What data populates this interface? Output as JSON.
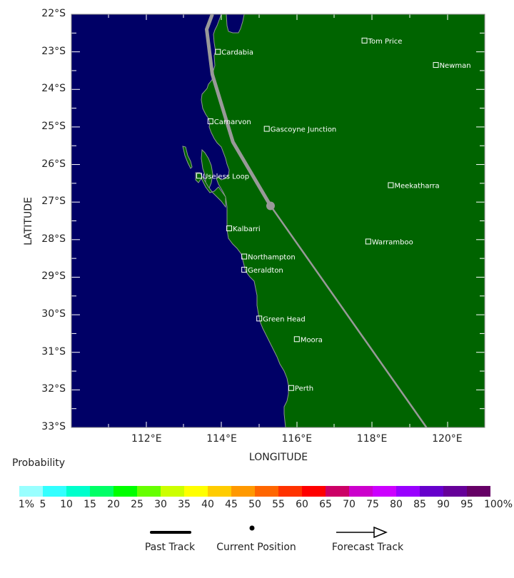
{
  "chart_data": {
    "type": "map",
    "title": "",
    "xlabel": "LONGITUDE",
    "ylabel": "LATITUDE",
    "xlim": [
      110,
      121
    ],
    "ylim": [
      -33,
      -22
    ],
    "x_ticks": [
      "112°E",
      "114°E",
      "116°E",
      "118°E",
      "120°E"
    ],
    "y_ticks": [
      "22°S",
      "23°S",
      "24°S",
      "25°S",
      "26°S",
      "27°S",
      "28°S",
      "29°S",
      "30°S",
      "31°S",
      "32°S",
      "33°S"
    ],
    "colors": {
      "ocean": "#000066",
      "land": "#006400",
      "coastline": "#8c9a8c",
      "track": "#999999"
    },
    "cities": [
      {
        "name": "Tom Price",
        "lon": 117.8,
        "lat": -22.7
      },
      {
        "name": "Cardabia",
        "lon": 113.9,
        "lat": -23.0
      },
      {
        "name": "Newman",
        "lon": 119.7,
        "lat": -23.35
      },
      {
        "name": "Carnarvon",
        "lon": 113.7,
        "lat": -24.85
      },
      {
        "name": "Gascoyne Junction",
        "lon": 115.2,
        "lat": -25.05
      },
      {
        "name": "Useless Loop",
        "lon": 113.4,
        "lat": -26.3
      },
      {
        "name": "Meekatharra",
        "lon": 118.5,
        "lat": -26.55
      },
      {
        "name": "Kalbarri",
        "lon": 114.2,
        "lat": -27.7
      },
      {
        "name": "Warramboo",
        "lon": 117.9,
        "lat": -28.05
      },
      {
        "name": "Northampton",
        "lon": 114.6,
        "lat": -28.45
      },
      {
        "name": "Geraldton",
        "lon": 114.6,
        "lat": -28.8
      },
      {
        "name": "Green Head",
        "lon": 115.0,
        "lat": -30.1
      },
      {
        "name": "Moora",
        "lon": 116.0,
        "lat": -30.65
      },
      {
        "name": "Perth",
        "lon": 115.85,
        "lat": -31.95
      }
    ],
    "past_track": [
      {
        "lon": 113.75,
        "lat": -22.0
      },
      {
        "lon": 113.6,
        "lat": -22.4
      },
      {
        "lon": 113.75,
        "lat": -23.6
      },
      {
        "lon": 114.3,
        "lat": -25.4
      },
      {
        "lon": 115.3,
        "lat": -27.1
      }
    ],
    "current_position": {
      "lon": 115.3,
      "lat": -27.1
    },
    "forecast_track": [
      {
        "lon": 115.3,
        "lat": -27.1
      },
      {
        "lon": 119.45,
        "lat": -33.0
      }
    ],
    "colorbar": {
      "title": "Probability",
      "tick_labels": [
        "1%",
        "5",
        "10",
        "15",
        "20",
        "25",
        "30",
        "35",
        "40",
        "45",
        "50",
        "55",
        "60",
        "65",
        "70",
        "75",
        "80",
        "85",
        "90",
        "95",
        "100%"
      ],
      "colors": [
        "#99ffff",
        "#33ffff",
        "#00ffcc",
        "#00ff66",
        "#00ff00",
        "#66ff00",
        "#ccff00",
        "#ffff00",
        "#ffcc00",
        "#ff9900",
        "#ff6600",
        "#ff3300",
        "#ff0000",
        "#cc0066",
        "#cc00cc",
        "#cc00ff",
        "#9900ff",
        "#6600cc",
        "#660099",
        "#660066"
      ]
    },
    "legend": [
      {
        "key": "past",
        "label": "Past Track"
      },
      {
        "key": "current",
        "label": "Current Position"
      },
      {
        "key": "forecast",
        "label": "Forecast Track"
      }
    ]
  }
}
